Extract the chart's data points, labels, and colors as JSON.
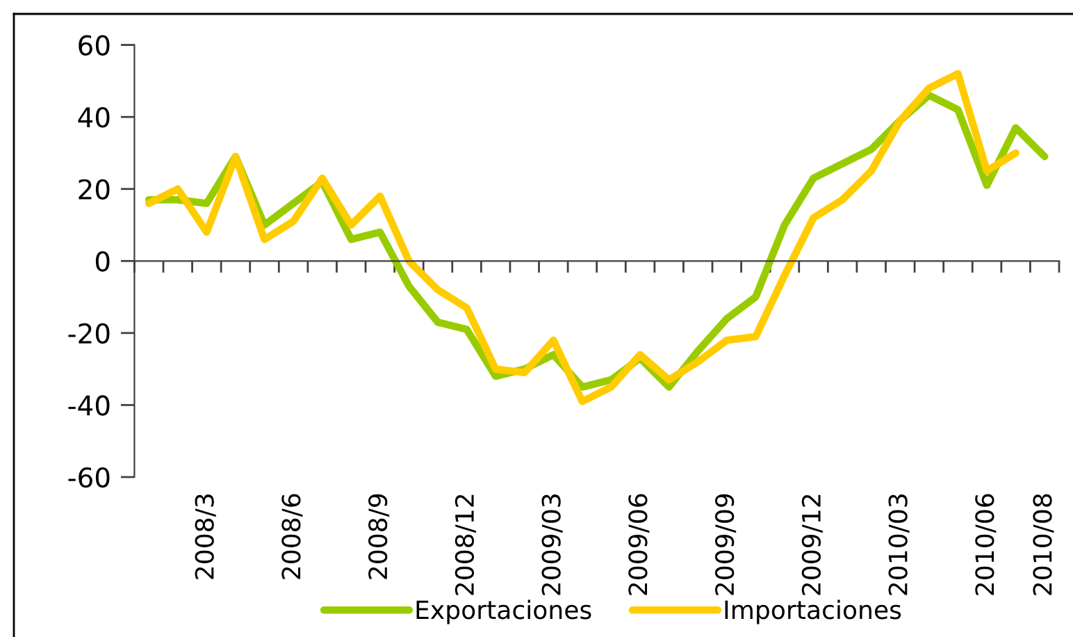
{
  "chart_data": {
    "type": "line",
    "categories": [
      null,
      null,
      "2008/3",
      null,
      null,
      "2008/6",
      null,
      null,
      "2008/9",
      null,
      null,
      "2008/12",
      null,
      null,
      "2009/03",
      null,
      null,
      "2009/06",
      null,
      null,
      "2009/09",
      null,
      null,
      "2009/12",
      null,
      null,
      "2010/03",
      null,
      null,
      "2010/06",
      null,
      "2010/08"
    ],
    "series": [
      {
        "name": "Exportaciones",
        "color": "#99cc00",
        "values": [
          17,
          17,
          16,
          29,
          10,
          16,
          22,
          6,
          8,
          -7,
          -17,
          -19,
          -32,
          -30,
          -26,
          -35,
          -33,
          -27,
          -35,
          -25,
          -16,
          -10,
          10,
          23,
          27,
          31,
          39,
          46,
          42,
          21,
          37,
          29
        ]
      },
      {
        "name": "Importaciones",
        "color": "#ffcc00",
        "values": [
          16,
          20,
          8,
          29,
          6,
          11,
          23,
          10,
          18,
          0,
          -8,
          -13,
          -30,
          -31,
          -22,
          -39,
          -35,
          -26,
          -33,
          -28,
          -22,
          -21,
          -4,
          12,
          17,
          25,
          39,
          48,
          52,
          25,
          30,
          null
        ]
      }
    ],
    "ylim": [
      -60,
      60
    ],
    "yticks": [
      -60,
      -40,
      -20,
      0,
      20,
      40,
      60
    ],
    "legend": "bottom"
  }
}
